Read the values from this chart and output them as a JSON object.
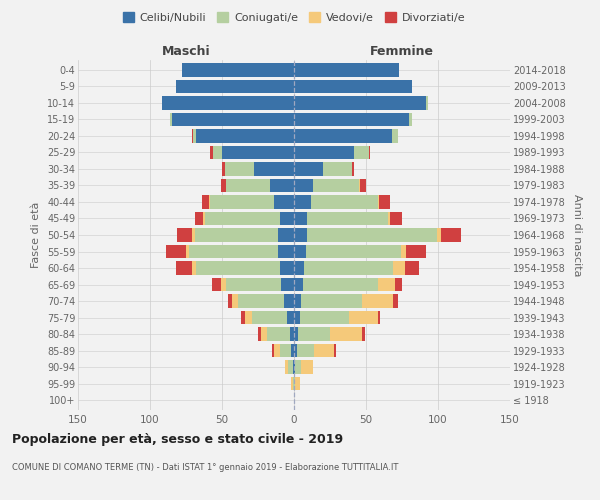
{
  "age_groups": [
    "100+",
    "95-99",
    "90-94",
    "85-89",
    "80-84",
    "75-79",
    "70-74",
    "65-69",
    "60-64",
    "55-59",
    "50-54",
    "45-49",
    "40-44",
    "35-39",
    "30-34",
    "25-29",
    "20-24",
    "15-19",
    "10-14",
    "5-9",
    "0-4"
  ],
  "birth_years": [
    "≤ 1918",
    "1919-1923",
    "1924-1928",
    "1929-1933",
    "1934-1938",
    "1939-1943",
    "1944-1948",
    "1949-1953",
    "1954-1958",
    "1959-1963",
    "1964-1968",
    "1969-1973",
    "1974-1978",
    "1979-1983",
    "1984-1988",
    "1989-1993",
    "1994-1998",
    "1999-2003",
    "2004-2008",
    "2009-2013",
    "2014-2018"
  ],
  "maschi": {
    "celibi": [
      0,
      0,
      1,
      2,
      3,
      5,
      7,
      9,
      10,
      11,
      11,
      10,
      14,
      17,
      28,
      50,
      68,
      85,
      92,
      82,
      78
    ],
    "coniugati": [
      0,
      1,
      3,
      8,
      16,
      24,
      32,
      38,
      58,
      62,
      58,
      52,
      44,
      30,
      20,
      6,
      2,
      1,
      0,
      0,
      0
    ],
    "vedovi": [
      0,
      1,
      2,
      4,
      4,
      5,
      4,
      4,
      3,
      2,
      2,
      1,
      1,
      0,
      0,
      0,
      0,
      0,
      0,
      0,
      0
    ],
    "divorziati": [
      0,
      0,
      0,
      1,
      2,
      3,
      3,
      6,
      11,
      14,
      10,
      6,
      5,
      4,
      2,
      2,
      1,
      0,
      0,
      0,
      0
    ]
  },
  "femmine": {
    "nubili": [
      0,
      0,
      1,
      2,
      3,
      4,
      5,
      6,
      7,
      8,
      9,
      9,
      12,
      13,
      20,
      42,
      68,
      80,
      92,
      82,
      73
    ],
    "coniugate": [
      0,
      1,
      4,
      12,
      22,
      34,
      42,
      52,
      62,
      66,
      90,
      56,
      46,
      32,
      20,
      10,
      4,
      2,
      1,
      0,
      0
    ],
    "vedove": [
      0,
      3,
      8,
      14,
      22,
      20,
      22,
      12,
      8,
      4,
      3,
      2,
      1,
      1,
      0,
      0,
      0,
      0,
      0,
      0,
      0
    ],
    "divorziate": [
      0,
      0,
      0,
      1,
      2,
      2,
      3,
      5,
      10,
      14,
      14,
      8,
      8,
      4,
      2,
      1,
      0,
      0,
      0,
      0,
      0
    ]
  },
  "colors": {
    "celibi": "#3a72a8",
    "coniugati": "#b5cfa0",
    "vedovi": "#f5c97a",
    "divorziati": "#d04040"
  },
  "xlim": 150,
  "title": "Popolazione per età, sesso e stato civile - 2019",
  "subtitle": "COMUNE DI COMANO TERME (TN) - Dati ISTAT 1° gennaio 2019 - Elaborazione TUTTITALIA.IT",
  "ylabel_left": "Fasce di età",
  "ylabel_right": "Anni di nascita",
  "xlabel_maschi": "Maschi",
  "xlabel_femmine": "Femmine",
  "legend_labels": [
    "Celibi/Nubili",
    "Coniugati/e",
    "Vedovi/e",
    "Divorziati/e"
  ],
  "bg_color": "#f2f2f2"
}
